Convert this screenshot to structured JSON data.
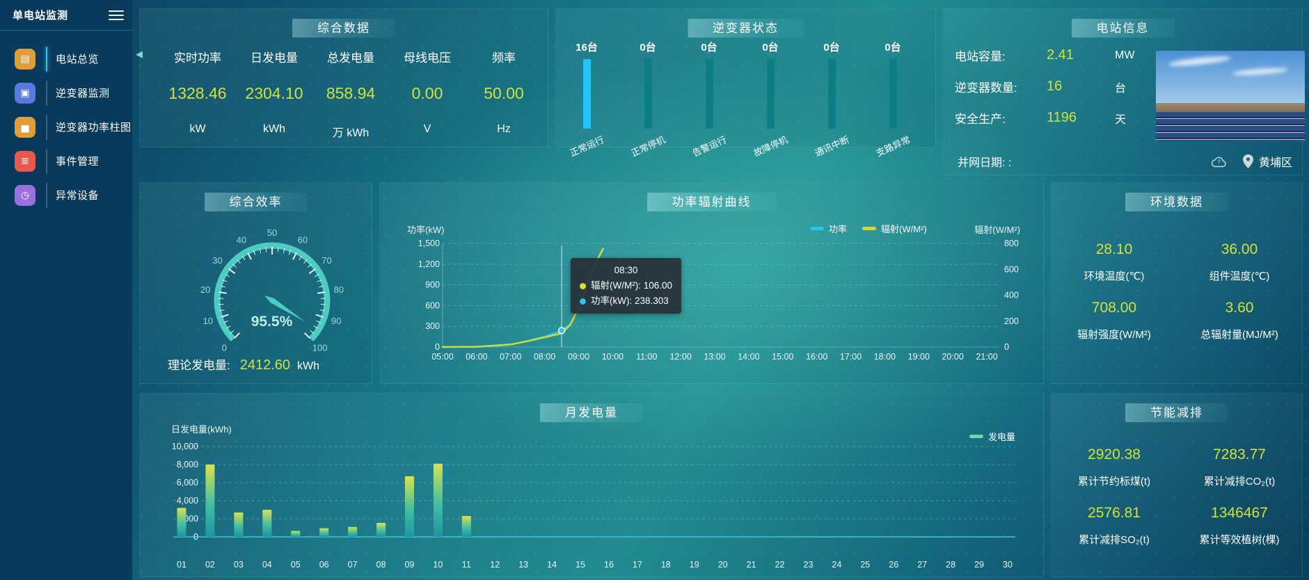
{
  "sidebar": {
    "title": "单电站监测",
    "items": [
      {
        "id": "station-overview",
        "label": "电站总览",
        "icon": "station-overview-icon",
        "glyph": "▤",
        "color": "#df9d3c",
        "active": true
      },
      {
        "id": "inverter-monitor",
        "label": "逆变器监测",
        "icon": "inverter-monitor-icon",
        "glyph": "▣",
        "color": "#5a79de",
        "active": false
      },
      {
        "id": "inverter-power-chart",
        "label": "逆变器功率柱图",
        "icon": "bar-chart-icon",
        "glyph": "▅",
        "color": "#df9d3c",
        "active": false
      },
      {
        "id": "event-management",
        "label": "事件管理",
        "icon": "event-note-icon",
        "glyph": "≣",
        "color": "#e85a4d",
        "active": false
      },
      {
        "id": "abnormal-devices",
        "label": "异常设备",
        "icon": "abnormal-device-icon",
        "glyph": "◷",
        "color": "#9a6fe0",
        "active": false
      }
    ]
  },
  "summary": {
    "title": "综合数据",
    "metrics": [
      {
        "label": "实时功率",
        "value": "1328.46",
        "unit": "kW"
      },
      {
        "label": "日发电量",
        "value": "2304.10",
        "unit": "kWh"
      },
      {
        "label": "总发电量",
        "value": "858.94",
        "unit": "万 kWh"
      },
      {
        "label": "母线电压",
        "value": "0.00",
        "unit": "V"
      },
      {
        "label": "频率",
        "value": "50.00",
        "unit": "Hz"
      }
    ]
  },
  "inverter_status": {
    "title": "逆变器状态",
    "items": [
      {
        "count": "16台",
        "label": "正常运行",
        "highlight": true
      },
      {
        "count": "0台",
        "label": "正常停机",
        "highlight": false
      },
      {
        "count": "0台",
        "label": "告警运行",
        "highlight": false
      },
      {
        "count": "0台",
        "label": "故障停机",
        "highlight": false
      },
      {
        "count": "0台",
        "label": "通讯中断",
        "highlight": false
      },
      {
        "count": "0台",
        "label": "支路异常",
        "highlight": false
      }
    ]
  },
  "station_info": {
    "title": "电站信息",
    "rows": [
      {
        "label": "电站容量:",
        "value": "2.41",
        "unit": "MW"
      },
      {
        "label": "逆变器数量:",
        "value": "16",
        "unit": "台"
      },
      {
        "label": "安全生产:",
        "value": "1196",
        "unit": "天"
      },
      {
        "label": "并网日期: :",
        "value": "",
        "unit": ""
      }
    ],
    "location": "黄埔区"
  },
  "efficiency": {
    "title": "综合效率",
    "value_text": "95.5%",
    "theory_label": "理论发电量:",
    "theory_value": "2412.60",
    "theory_unit": "kWh"
  },
  "power_curve": {
    "title": "功率辐射曲线",
    "left_axis_label": "功率(kW)",
    "right_axis_label": "辐射(W/M²)",
    "legend": [
      {
        "name": "功率",
        "color": "#29c3f5"
      },
      {
        "name": "辐射(W/M²)",
        "color": "#cfd93a"
      }
    ],
    "tooltip": {
      "time": "08:30",
      "lines": [
        {
          "dot": "#d9e030",
          "text": "辐射(W/M²): 106.00"
        },
        {
          "dot": "#29c3f5",
          "text": "功率(kW): 238.303"
        }
      ]
    }
  },
  "environment": {
    "title": "环境数据",
    "metrics": [
      {
        "value": "28.10",
        "label": "环境温度(℃)"
      },
      {
        "value": "36.00",
        "label": "组件温度(℃)"
      },
      {
        "value": "708.00",
        "label": "辐射强度(W/M²)"
      },
      {
        "value": "3.60",
        "label": "总辐射量(MJ/M²)"
      }
    ]
  },
  "monthly": {
    "title": "月发电量",
    "y_axis_label": "日发电量(kWh)",
    "legend": "发电量",
    "legend_color": "#6fd7a8"
  },
  "saving": {
    "title": "节能减排",
    "metrics": [
      {
        "value": "2920.38",
        "label": "累计节约标煤(t)"
      },
      {
        "value": "7283.77",
        "label": "累计减排CO₂(t)"
      },
      {
        "value": "2576.81",
        "label": "累计减排SO₂(t)"
      },
      {
        "value": "1346467",
        "label": "累计等效植树(棵)"
      }
    ]
  },
  "chart_data": [
    {
      "type": "gauge",
      "title": "综合效率",
      "value": 95.5,
      "unit": "%",
      "min": 0,
      "max": 100,
      "major_ticks": [
        0,
        10,
        20,
        30,
        40,
        50,
        60,
        70,
        80,
        90,
        100
      ],
      "color": "#4fccc0"
    },
    {
      "type": "line",
      "title": "功率辐射曲线",
      "x_ticks": [
        "05:00",
        "06:00",
        "07:00",
        "08:00",
        "09:00",
        "10:00",
        "11:00",
        "12:00",
        "13:00",
        "14:00",
        "15:00",
        "16:00",
        "17:00",
        "18:00",
        "19:00",
        "20:00",
        "21:00"
      ],
      "x_range_hours": [
        5,
        21
      ],
      "y_left": {
        "label": "功率(kW)",
        "ticks": [
          "0",
          "300",
          "600",
          "900",
          "1,200",
          "1,500"
        ],
        "max": 1500
      },
      "y_right": {
        "label": "辐射(W/M²)",
        "ticks": [
          "0",
          "200",
          "400",
          "600",
          "800"
        ],
        "max": 800
      },
      "series": [
        {
          "name": "功率",
          "unit": "kW",
          "axis": "left",
          "color": "#29c3f5",
          "points": [
            [
              5,
              0
            ],
            [
              5.5,
              2
            ],
            [
              6,
              5
            ],
            [
              6.5,
              12
            ],
            [
              7,
              35
            ],
            [
              7.5,
              90
            ],
            [
              8,
              150
            ],
            [
              8.5,
              238.3
            ],
            [
              8.75,
              330
            ],
            [
              9,
              560
            ],
            [
              9.25,
              900
            ],
            [
              9.5,
              1200
            ],
            [
              9.7,
              1400
            ]
          ]
        },
        {
          "name": "辐射(W/M²)",
          "unit": "W/M²",
          "axis": "right",
          "color": "#cfd93a",
          "points": [
            [
              5,
              0
            ],
            [
              6,
              2
            ],
            [
              7,
              20
            ],
            [
              7.5,
              45
            ],
            [
              8,
              75
            ],
            [
              8.5,
              106
            ],
            [
              8.75,
              170
            ],
            [
              9,
              300
            ],
            [
              9.25,
              480
            ],
            [
              9.5,
              650
            ],
            [
              9.72,
              760
            ]
          ]
        }
      ],
      "crosshair": {
        "time": "08:30",
        "hour": 8.5,
        "power": 238.303,
        "radiation": 106.0
      },
      "legend_position": "top-right",
      "grid": "dashed-horizontal"
    },
    {
      "type": "bar",
      "title": "月发电量",
      "categories": [
        "01",
        "02",
        "03",
        "04",
        "05",
        "06",
        "07",
        "08",
        "09",
        "10",
        "11",
        "12",
        "13",
        "14",
        "15",
        "16",
        "17",
        "18",
        "19",
        "20",
        "21",
        "22",
        "23",
        "24",
        "25",
        "26",
        "27",
        "28",
        "29",
        "30"
      ],
      "values": [
        3200,
        8000,
        2700,
        3000,
        650,
        950,
        1100,
        1550,
        6700,
        8100,
        2304,
        0,
        0,
        0,
        0,
        0,
        0,
        0,
        0,
        0,
        0,
        0,
        0,
        0,
        0,
        0,
        0,
        0,
        0,
        0
      ],
      "ylabel": "日发电量(kWh)",
      "ylim": [
        0,
        10000
      ],
      "y_ticks": [
        "0",
        "2,000",
        "4,000",
        "6,000",
        "8,000",
        "10,000"
      ],
      "legend": "发电量",
      "bar_gradient": [
        "#d9e24f",
        "#44bfa0",
        "#1f93a5"
      ]
    }
  ],
  "colors": {
    "accent_value": "#d3e23a",
    "highlight_bar": "#25c2f4",
    "normal_bar": "#0e7e86",
    "gauge": "#4fccc0"
  }
}
